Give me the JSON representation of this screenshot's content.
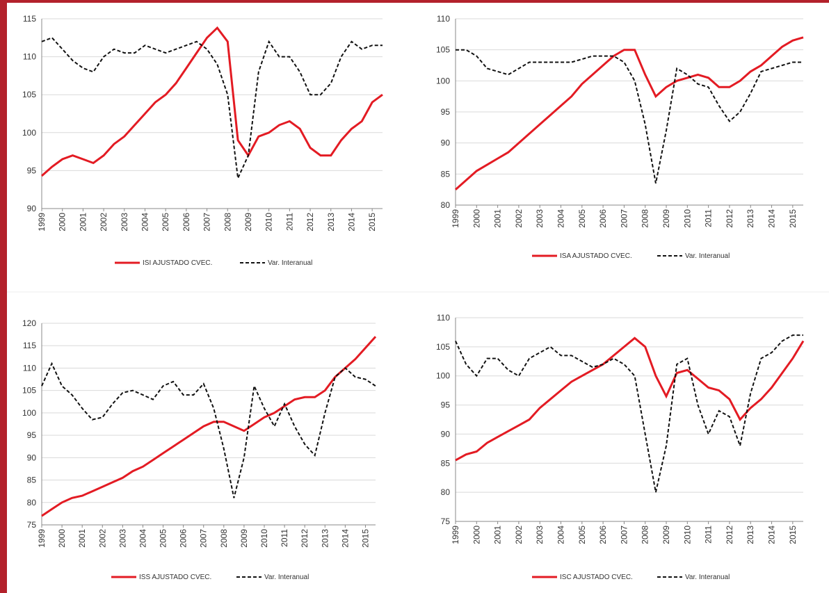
{
  "chart_data": [
    {
      "type": "line",
      "grid": true,
      "xlim": [
        1999,
        2015.5
      ],
      "ylim": [
        90,
        115
      ],
      "yticks": [
        90,
        95,
        100,
        105,
        110,
        115
      ],
      "xticks": [
        1999,
        2000,
        2001,
        2002,
        2003,
        2004,
        2005,
        2006,
        2007,
        2008,
        2009,
        2010,
        2011,
        2012,
        2013,
        2014,
        2015
      ],
      "x": [
        1999,
        1999.5,
        2000,
        2000.5,
        2001,
        2001.5,
        2002,
        2002.5,
        2003,
        2003.5,
        2004,
        2004.5,
        2005,
        2005.5,
        2006,
        2006.5,
        2007,
        2007.5,
        2008,
        2008.5,
        2009,
        2009.5,
        2010,
        2010.5,
        2011,
        2011.5,
        2012,
        2012.5,
        2013,
        2013.5,
        2014,
        2014.5,
        2015,
        2015.5
      ],
      "series": [
        {
          "name": "ISI AJUSTADO CVEC.",
          "color": "#e31b23",
          "linestyle": "solid",
          "values": [
            94.3,
            95.5,
            96.5,
            97,
            96.5,
            96,
            97,
            98.5,
            99.5,
            101,
            102.5,
            104,
            105,
            106.5,
            108.5,
            110.5,
            112.5,
            113.8,
            112,
            99,
            97,
            99.5,
            100,
            101,
            101.5,
            100.5,
            98,
            97,
            97,
            99,
            100.5,
            101.5,
            104,
            105
          ]
        },
        {
          "name": "Var. Interanual",
          "color": "#111111",
          "linestyle": "dashed",
          "values": [
            112,
            112.5,
            111,
            109.5,
            108.5,
            108,
            110,
            111,
            110.5,
            110.5,
            111.5,
            111,
            110.5,
            111,
            111.5,
            112,
            111,
            109,
            105,
            94,
            97,
            108,
            112,
            110,
            110,
            108,
            105,
            105,
            106.5,
            110,
            112,
            111,
            111.5,
            111.5
          ]
        }
      ]
    },
    {
      "type": "line",
      "grid": true,
      "xlim": [
        1999,
        2015.5
      ],
      "ylim": [
        80,
        110
      ],
      "yticks": [
        80,
        85,
        90,
        95,
        100,
        105,
        110
      ],
      "xticks": [
        1999,
        2000,
        2001,
        2002,
        2003,
        2004,
        2005,
        2006,
        2007,
        2008,
        2009,
        2010,
        2011,
        2012,
        2013,
        2014,
        2015
      ],
      "x": [
        1999,
        1999.5,
        2000,
        2000.5,
        2001,
        2001.5,
        2002,
        2002.5,
        2003,
        2003.5,
        2004,
        2004.5,
        2005,
        2005.5,
        2006,
        2006.5,
        2007,
        2007.5,
        2008,
        2008.5,
        2009,
        2009.5,
        2010,
        2010.5,
        2011,
        2011.5,
        2012,
        2012.5,
        2013,
        2013.5,
        2014,
        2014.5,
        2015,
        2015.5
      ],
      "series": [
        {
          "name": "ISA AJUSTADO CVEC.",
          "color": "#e31b23",
          "linestyle": "solid",
          "values": [
            82.5,
            84,
            85.5,
            86.5,
            87.5,
            88.5,
            90,
            91.5,
            93,
            94.5,
            96,
            97.5,
            99.5,
            101,
            102.5,
            104,
            105,
            105,
            101,
            97.5,
            99,
            100,
            100.5,
            101,
            100.5,
            99,
            99,
            100,
            101.5,
            102.5,
            104,
            105.5,
            106.5,
            107
          ]
        },
        {
          "name": "Var. Interanual",
          "color": "#111111",
          "linestyle": "dashed",
          "values": [
            105,
            105,
            104,
            102,
            101.5,
            101,
            102,
            103,
            103,
            103,
            103,
            103,
            103.5,
            104,
            104,
            104,
            103,
            100,
            93,
            83.5,
            92,
            102,
            101,
            99.5,
            99,
            96,
            93.5,
            95,
            98,
            101.5,
            102,
            102.5,
            103,
            103
          ]
        }
      ]
    },
    {
      "type": "line",
      "grid": true,
      "xlim": [
        1999,
        2015.5
      ],
      "ylim": [
        75,
        120
      ],
      "yticks": [
        75,
        80,
        85,
        90,
        95,
        100,
        105,
        110,
        115,
        120
      ],
      "xticks": [
        1999,
        2000,
        2001,
        2002,
        2003,
        2004,
        2005,
        2006,
        2007,
        2008,
        2009,
        2010,
        2011,
        2012,
        2013,
        2014,
        2015
      ],
      "x": [
        1999,
        1999.5,
        2000,
        2000.5,
        2001,
        2001.5,
        2002,
        2002.5,
        2003,
        2003.5,
        2004,
        2004.5,
        2005,
        2005.5,
        2006,
        2006.5,
        2007,
        2007.5,
        2008,
        2008.5,
        2009,
        2009.5,
        2010,
        2010.5,
        2011,
        2011.5,
        2012,
        2012.5,
        2013,
        2013.5,
        2014,
        2014.5,
        2015,
        2015.5
      ],
      "series": [
        {
          "name": "ISS AJUSTADO CVEC.",
          "color": "#e31b23",
          "linestyle": "solid",
          "values": [
            77,
            78.5,
            80,
            81,
            81.5,
            82.5,
            83.5,
            84.5,
            85.5,
            87,
            88,
            89.5,
            91,
            92.5,
            94,
            95.5,
            97,
            98,
            98,
            97,
            96,
            97.5,
            99,
            100,
            101.5,
            103,
            103.5,
            103.5,
            105,
            108,
            110,
            112,
            114.5,
            117
          ]
        },
        {
          "name": "Var. Interanual",
          "color": "#111111",
          "linestyle": "dashed",
          "values": [
            106,
            111,
            106,
            104,
            101,
            98.5,
            99,
            102,
            104.5,
            105,
            104,
            103,
            106,
            107,
            104,
            104,
            106.5,
            101,
            92,
            81,
            90,
            106,
            101,
            97,
            102,
            97,
            93,
            90.5,
            100,
            108,
            110,
            108,
            107.5,
            106
          ]
        }
      ]
    },
    {
      "type": "line",
      "grid": true,
      "xlim": [
        1999,
        2015.5
      ],
      "ylim": [
        75,
        110
      ],
      "yticks": [
        75,
        80,
        85,
        90,
        95,
        100,
        105,
        110
      ],
      "xticks": [
        1999,
        2000,
        2001,
        2002,
        2003,
        2004,
        2005,
        2006,
        2007,
        2008,
        2009,
        2010,
        2011,
        2012,
        2013,
        2014,
        2015
      ],
      "x": [
        1999,
        1999.5,
        2000,
        2000.5,
        2001,
        2001.5,
        2002,
        2002.5,
        2003,
        2003.5,
        2004,
        2004.5,
        2005,
        2005.5,
        2006,
        2006.5,
        2007,
        2007.5,
        2008,
        2008.5,
        2009,
        2009.5,
        2010,
        2010.5,
        2011,
        2011.5,
        2012,
        2012.5,
        2013,
        2013.5,
        2014,
        2014.5,
        2015,
        2015.5
      ],
      "series": [
        {
          "name": "ISC AJUSTADO CVEC.",
          "color": "#e31b23",
          "linestyle": "solid",
          "values": [
            85.5,
            86.5,
            87,
            88.5,
            89.5,
            90.5,
            91.5,
            92.5,
            94.5,
            96,
            97.5,
            99,
            100,
            101,
            102,
            103.5,
            105,
            106.5,
            105,
            100,
            96.5,
            100.5,
            101,
            99.5,
            98,
            97.5,
            96,
            92.5,
            94.5,
            96,
            98,
            100.5,
            103,
            106
          ]
        },
        {
          "name": "Var. Interanual",
          "color": "#111111",
          "linestyle": "dashed",
          "values": [
            106,
            102,
            100,
            103,
            103,
            101,
            100,
            103,
            104,
            105,
            103.5,
            103.5,
            102.5,
            101.5,
            102,
            103,
            102,
            100,
            90,
            80,
            88,
            102,
            103,
            95,
            90,
            94,
            93,
            88,
            97,
            103,
            104,
            106,
            107,
            107
          ]
        }
      ]
    }
  ]
}
